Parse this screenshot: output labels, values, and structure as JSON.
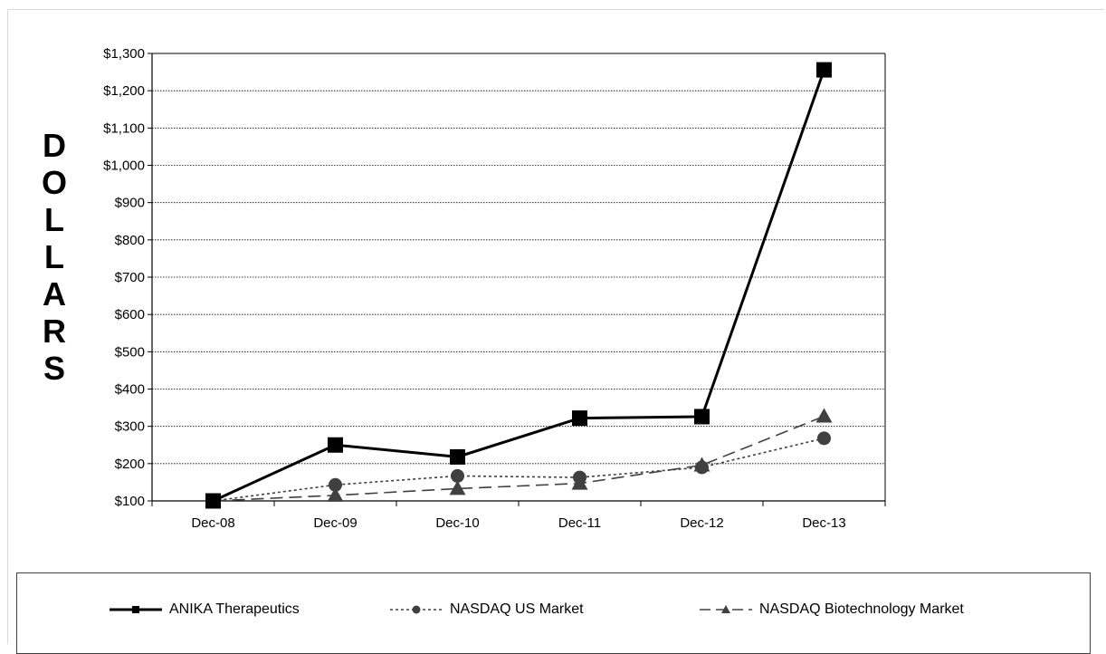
{
  "chart_data": {
    "type": "line",
    "title": "",
    "xlabel": "",
    "ylabel": "DOLLARS",
    "categories": [
      "Dec-08",
      "Dec-09",
      "Dec-10",
      "Dec-11",
      "Dec-12",
      "Dec-13"
    ],
    "yticks": [
      "$100",
      "$200",
      "$300",
      "$400",
      "$500",
      "$600",
      "$700",
      "$800",
      "$900",
      "$1,000",
      "$1,100",
      "$1,200",
      "$1,300"
    ],
    "ylim": [
      100,
      1300
    ],
    "grid": "horizontal dotted",
    "legend_position": "bottom",
    "series": [
      {
        "name": "ANIKA Therapeutics",
        "values": [
          100,
          250,
          218,
          322,
          326,
          1256
        ],
        "color": "#000000",
        "marker": "square",
        "line_style": "solid"
      },
      {
        "name": "NASDAQ US Market",
        "values": [
          100,
          143,
          167,
          163,
          190,
          268
        ],
        "color": "#404040",
        "marker": "circle",
        "line_style": "dotted"
      },
      {
        "name": "NASDAQ Biotechnology Market",
        "values": [
          100,
          115,
          133,
          147,
          196,
          327
        ],
        "color": "#404040",
        "marker": "triangle",
        "line_style": "dashed"
      }
    ]
  }
}
